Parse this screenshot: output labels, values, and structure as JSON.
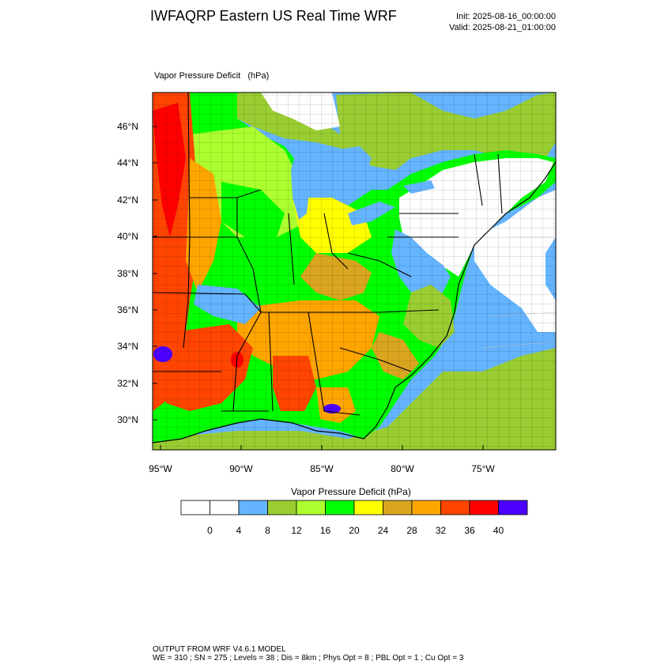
{
  "header": {
    "title": "IWFAQRP Eastern US Real Time WRF",
    "init": "Init: 2025-08-16_00:00:00",
    "valid": "Valid: 2025-08-21_01:00:00"
  },
  "map": {
    "field_label": "Vapor Pressure Deficit   (hPa)",
    "lat_labels": [
      "46°N",
      "44°N",
      "42°N",
      "40°N",
      "38°N",
      "36°N",
      "34°N",
      "32°N",
      "30°N"
    ],
    "lon_labels": [
      "95°W",
      "90°W",
      "85°W",
      "80°W",
      "75°W"
    ]
  },
  "colorbar": {
    "title": "Vapor Pressure Deficit  (hPa)",
    "colors": [
      "#ffffff",
      "#ffffff",
      "#64b4ff",
      "#9acd32",
      "#adff2f",
      "#00ff00",
      "#ffff00",
      "#daa520",
      "#ffa500",
      "#ff4500",
      "#ff0000",
      "#4b00ff"
    ],
    "labels": [
      "0",
      "4",
      "8",
      "12",
      "16",
      "20",
      "24",
      "28",
      "32",
      "36",
      "40"
    ]
  },
  "footer": {
    "line1": "OUTPUT FROM WRF V4.6.1 MODEL",
    "line2": "WE = 310 ; SN = 275 ; Levels = 38 ; Dis = 8km ; Phys Opt = 8 ; PBL Opt = 1 ; Cu Opt = 3"
  }
}
